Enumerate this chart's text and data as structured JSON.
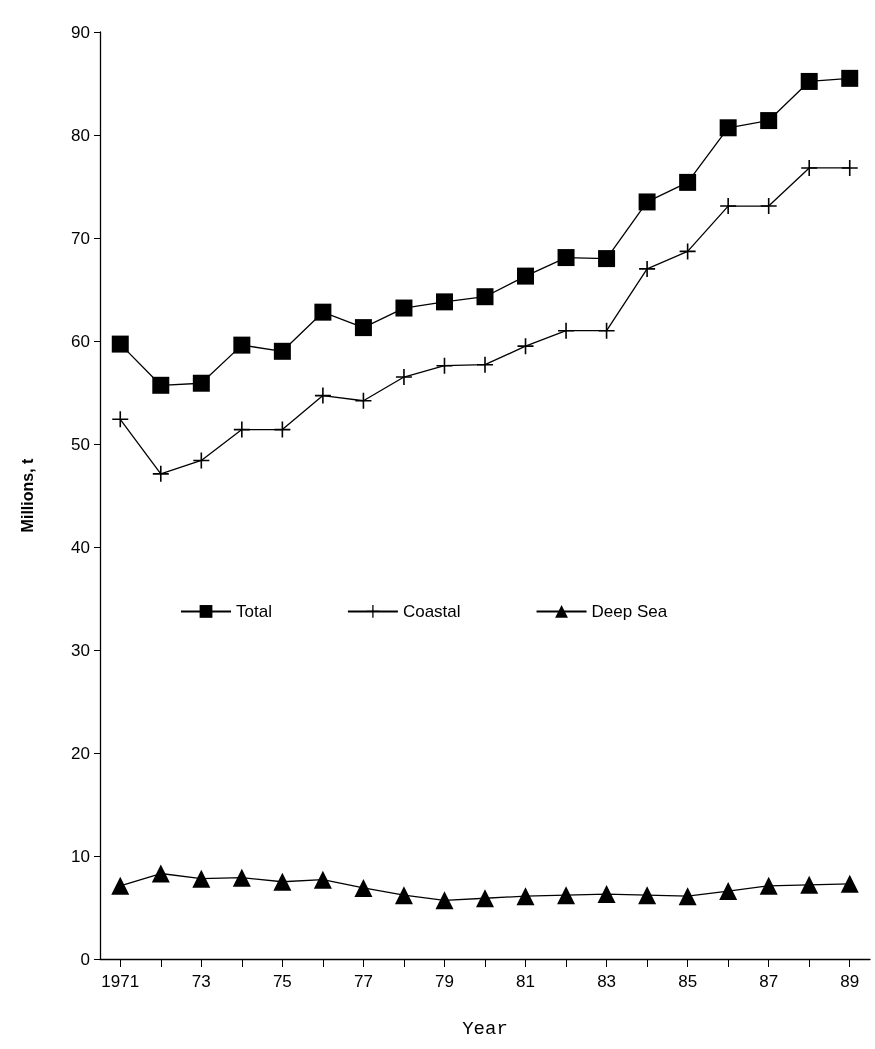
{
  "chart_data": {
    "type": "line",
    "xlabel": "Year",
    "ylabel": "Millions, t",
    "categories": [
      "1971",
      null,
      "73",
      null,
      "75",
      null,
      "77",
      null,
      "79",
      null,
      "81",
      null,
      "83",
      null,
      "85",
      null,
      "87",
      null,
      "89"
    ],
    "series": [
      {
        "name": "Total",
        "color": "#000000",
        "marker": "square",
        "values": [
          59.7,
          55.7,
          55.9,
          59.6,
          59.0,
          62.8,
          61.3,
          63.2,
          63.8,
          64.3,
          66.3,
          68.1,
          68.0,
          73.5,
          75.4,
          80.7,
          81.4,
          85.2,
          85.5
        ]
      },
      {
        "name": "Coastal",
        "color": "#000000",
        "marker": "cross",
        "values": [
          52.4,
          47.1,
          48.4,
          51.4,
          51.4,
          54.7,
          54.2,
          56.5,
          57.6,
          57.7,
          59.5,
          61.0,
          61.0,
          67.0,
          68.7,
          73.1,
          73.1,
          76.8,
          76.8
        ]
      },
      {
        "name": "Deep Sea",
        "color": "#000000",
        "marker": "triangle",
        "values": [
          7.1,
          8.3,
          7.8,
          7.9,
          7.5,
          7.7,
          6.9,
          6.2,
          5.7,
          5.9,
          6.1,
          6.2,
          6.3,
          6.2,
          6.1,
          6.6,
          7.1,
          7.2,
          7.3
        ]
      }
    ],
    "ylim": [
      0,
      90
    ],
    "yticks": [
      0,
      10,
      20,
      30,
      40,
      50,
      60,
      70,
      80,
      90
    ],
    "grid": false,
    "legend": "center",
    "line_style": "solid"
  }
}
